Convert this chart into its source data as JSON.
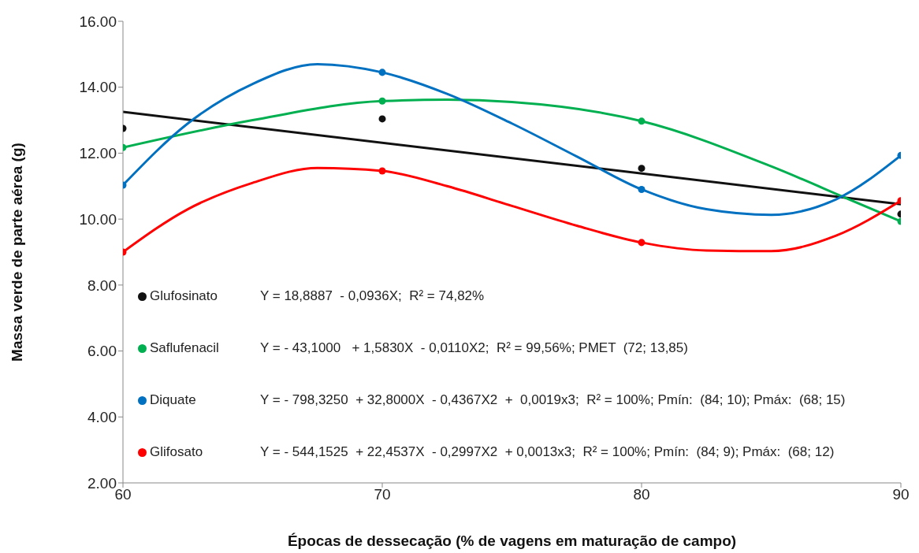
{
  "chart_data": {
    "type": "scatter",
    "xlabel": "Épocas de dessecação (% de vagens em maturação de campo)",
    "ylabel": "Massa verde de parte aérea (g)",
    "xlim": [
      60,
      90
    ],
    "xticks": [
      60,
      70,
      80,
      90
    ],
    "ylim": [
      2,
      16
    ],
    "yticks": [
      {
        "value": 2,
        "label": "2.00"
      },
      {
        "value": 4,
        "label": "4.00"
      },
      {
        "value": 6,
        "label": "6.00"
      },
      {
        "value": 8,
        "label": "8.00"
      },
      {
        "value": 10,
        "label": "10.00"
      },
      {
        "value": 12,
        "label": "12.00"
      },
      {
        "value": 14,
        "label": "14.00"
      },
      {
        "value": 16,
        "label": "16.00"
      }
    ],
    "grid": false,
    "legend": "bottom left",
    "marker": "circle",
    "x": [
      60,
      70,
      80,
      90
    ],
    "series": [
      {
        "name": "Glufosinato",
        "color": "#111111",
        "values": [
          12.75,
          13.04,
          11.54,
          10.15
        ]
      },
      {
        "name": "Saflufenacil",
        "color": "#00b050",
        "values": [
          12.17,
          13.58,
          12.97,
          9.93
        ]
      },
      {
        "name": "Diquate",
        "color": "#0070c0",
        "values": [
          11.03,
          14.45,
          10.9,
          11.93
        ]
      },
      {
        "name": "Glifosato",
        "color": "#ff0000",
        "values": [
          9.0,
          11.46,
          9.29,
          10.56
        ]
      },
      {
        "type": "line",
        "marker": "none",
        "color": "#111111",
        "x": [
          60,
          90
        ],
        "values": [
          13.25,
          10.45
        ]
      },
      {
        "type": "line",
        "marker": "none",
        "color": "#00b050",
        "x": [
          60,
          65,
          70,
          72.5,
          75,
          80,
          85,
          88,
          90
        ],
        "values": [
          12.17,
          13.0,
          13.58,
          13.62,
          13.55,
          12.97,
          11.6,
          10.6,
          9.93
        ]
      },
      {
        "type": "line",
        "marker": "none",
        "color": "#0070c0",
        "x": [
          60,
          62.5,
          65,
          67.5,
          70,
          72.5,
          75,
          77.5,
          80,
          82.5,
          85,
          87.5,
          90
        ],
        "values": [
          11.03,
          12.9,
          14.1,
          14.7,
          14.45,
          13.8,
          12.9,
          11.9,
          10.9,
          10.3,
          10.13,
          10.6,
          11.93
        ]
      },
      {
        "type": "line",
        "marker": "none",
        "color": "#ff0000",
        "x": [
          60,
          62.5,
          65,
          67.5,
          70,
          72.5,
          75,
          77.5,
          80,
          82.5,
          85,
          87.5,
          90
        ],
        "values": [
          9.0,
          10.3,
          11.1,
          11.55,
          11.46,
          11.0,
          10.4,
          9.8,
          9.29,
          9.05,
          9.03,
          9.5,
          10.56
        ]
      }
    ],
    "annotations": [
      "Y = 18,8887  - 0,0936X;  R² = 74,82%",
      "Y = - 43,1000   + 1,5830X  - 0,0110X2;  R² = 99,56%; PMET  (72; 13,85)",
      "Y = - 798,3250  + 32,8000X  - 0,4367X2  +  0,0019x3;  R² = 100%; Pmín:  (84; 10); Pmáx:  (68; 15)",
      "Y = - 544,1525  + 22,4537X  - 0,2997X2  + 0,0013x3;  R² = 100%; Pmín:  (84; 9); Pmáx:  (68; 12)"
    ]
  }
}
